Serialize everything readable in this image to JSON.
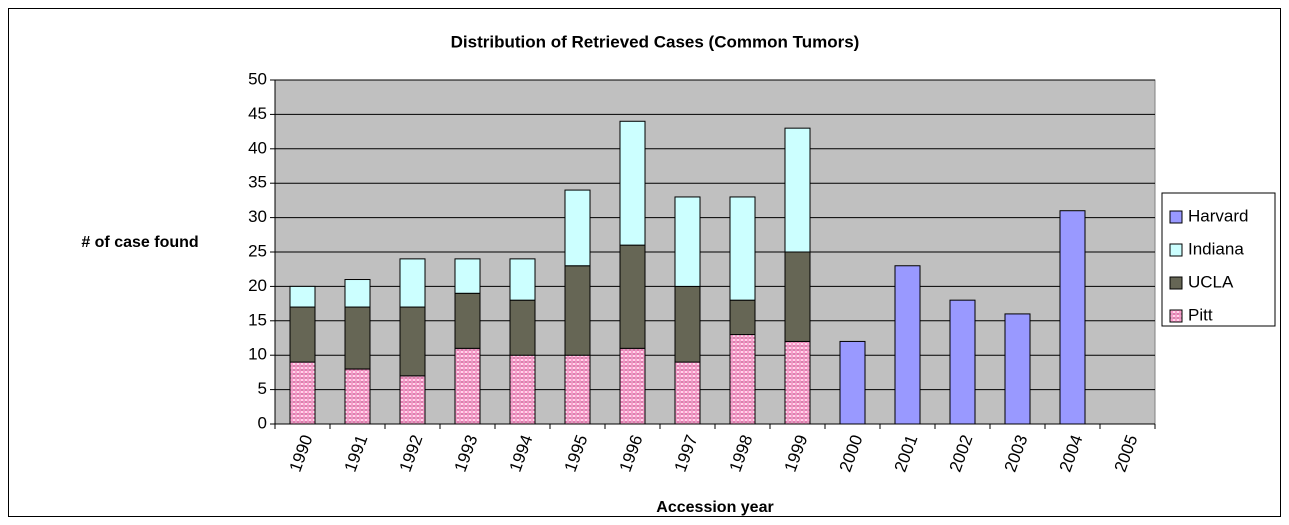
{
  "chart_data": {
    "type": "stacked_bar",
    "title": "Distribution of Retrieved Cases (Common Tumors)",
    "x_label": "Accession year",
    "y_label": "# of case found",
    "categories": [
      "1990",
      "1991",
      "1992",
      "1993",
      "1994",
      "1995",
      "1996",
      "1997",
      "1998",
      "1999",
      "2000",
      "2001",
      "2002",
      "2003",
      "2004",
      "2005"
    ],
    "series": [
      {
        "name": "Pitt",
        "color": "#ff99cc",
        "pattern": "crosshatch",
        "values": [
          9,
          8,
          7,
          11,
          10,
          10,
          11,
          9,
          13,
          12,
          null,
          null,
          null,
          null,
          null,
          null
        ]
      },
      {
        "name": "UCLA",
        "color": "#666655",
        "values": [
          8,
          9,
          10,
          8,
          8,
          13,
          15,
          11,
          5,
          13,
          null,
          null,
          null,
          null,
          null,
          null
        ]
      },
      {
        "name": "Indiana",
        "color": "#ccffff",
        "values": [
          3,
          4,
          7,
          5,
          6,
          11,
          18,
          13,
          15,
          18,
          null,
          null,
          null,
          null,
          null,
          null
        ]
      },
      {
        "name": "Harvard",
        "color": "#9999ff",
        "values": [
          null,
          null,
          null,
          null,
          null,
          null,
          null,
          null,
          null,
          null,
          12,
          23,
          18,
          16,
          31,
          null
        ]
      }
    ],
    "ylim": [
      0,
      50
    ],
    "yticks": [
      0,
      5,
      10,
      15,
      20,
      25,
      30,
      35,
      40,
      45,
      50
    ],
    "grid": true,
    "legend": "right"
  }
}
